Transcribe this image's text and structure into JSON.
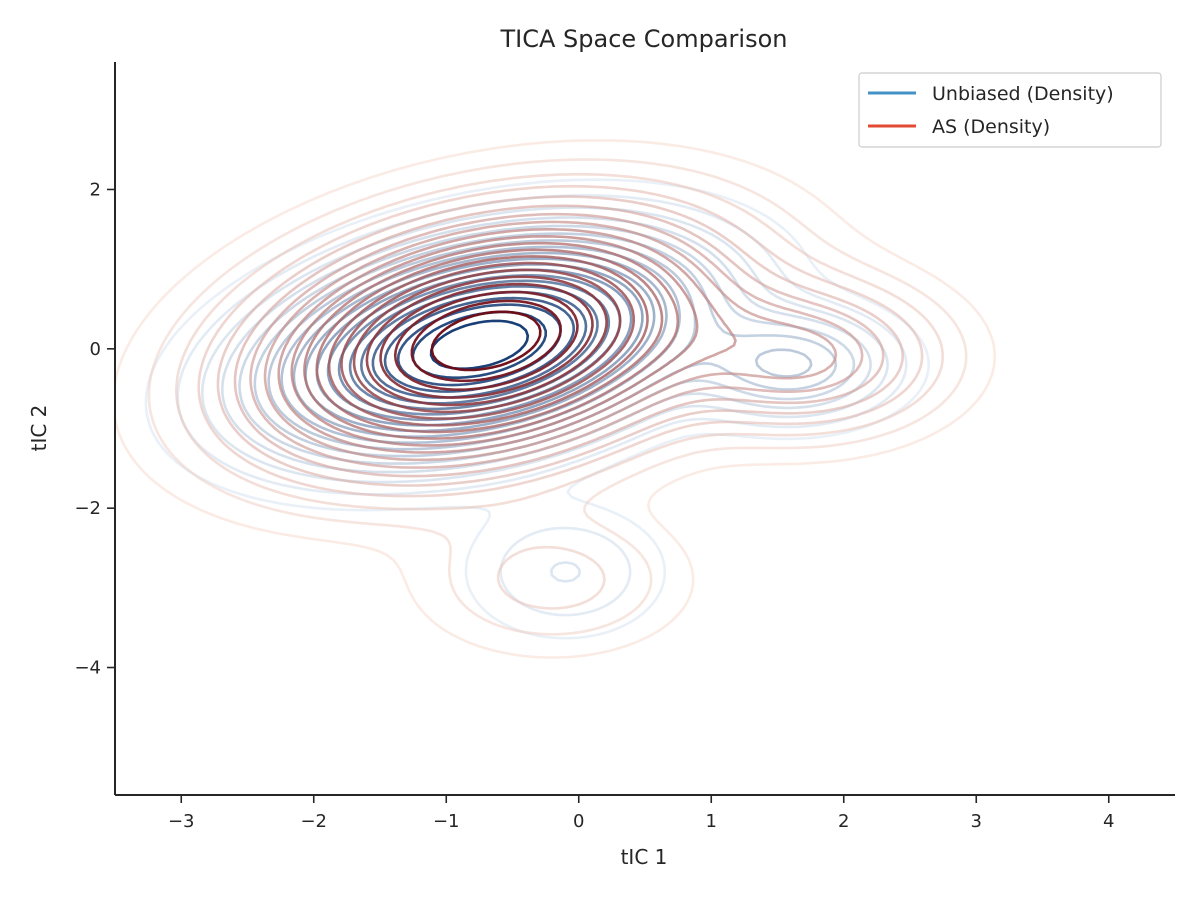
{
  "chart_data": {
    "type": "contour",
    "title": "TICA Space Comparison",
    "xlabel": "tIC 1",
    "ylabel": "tIC 2",
    "xlim": [
      -3.5,
      4.5
    ],
    "ylim": [
      -5.6,
      3.6
    ],
    "xticks": [
      -3,
      -2,
      -1,
      0,
      1,
      2,
      3,
      4
    ],
    "xtick_labels": [
      "−3",
      "−2",
      "−1",
      "0",
      "1",
      "2",
      "3",
      "4"
    ],
    "yticks": [
      -4,
      -2,
      0,
      2
    ],
    "ytick_labels": [
      "−4",
      "−2",
      "0",
      "2"
    ],
    "grid": false,
    "legend_position": "top-right",
    "series": [
      {
        "name": "Unbiased (Density)",
        "kind": "kde-contours",
        "color": "#4292c6",
        "colormap": "Blues",
        "levels": 10,
        "peak": [
          -0.75,
          0.05
        ],
        "components": [
          {
            "weight": 1.0,
            "cx": -0.75,
            "cy": 0.05,
            "sx": 0.85,
            "sy": 0.7,
            "rho": 0.35
          },
          {
            "weight": 0.18,
            "cx": 1.6,
            "cy": -0.2,
            "sx": 0.45,
            "sy": 0.4,
            "rho": 0.0
          },
          {
            "weight": 0.05,
            "cx": -0.1,
            "cy": -2.8,
            "sx": 0.45,
            "sy": 0.5,
            "rho": 0.0
          }
        ]
      },
      {
        "name": "AS (Density)",
        "kind": "kde-contours",
        "color": "#e34a33",
        "colormap": "Reds",
        "levels": 10,
        "peak": [
          -0.7,
          0.1
        ],
        "components": [
          {
            "weight": 1.0,
            "cx": -0.7,
            "cy": 0.1,
            "sx": 0.95,
            "sy": 0.85,
            "rho": 0.3
          },
          {
            "weight": 0.22,
            "cx": 1.7,
            "cy": -0.1,
            "sx": 0.6,
            "sy": 0.55,
            "rho": 0.0
          },
          {
            "weight": 0.06,
            "cx": -0.2,
            "cy": -2.9,
            "sx": 0.6,
            "sy": 0.55,
            "rho": 0.0
          }
        ]
      }
    ]
  }
}
